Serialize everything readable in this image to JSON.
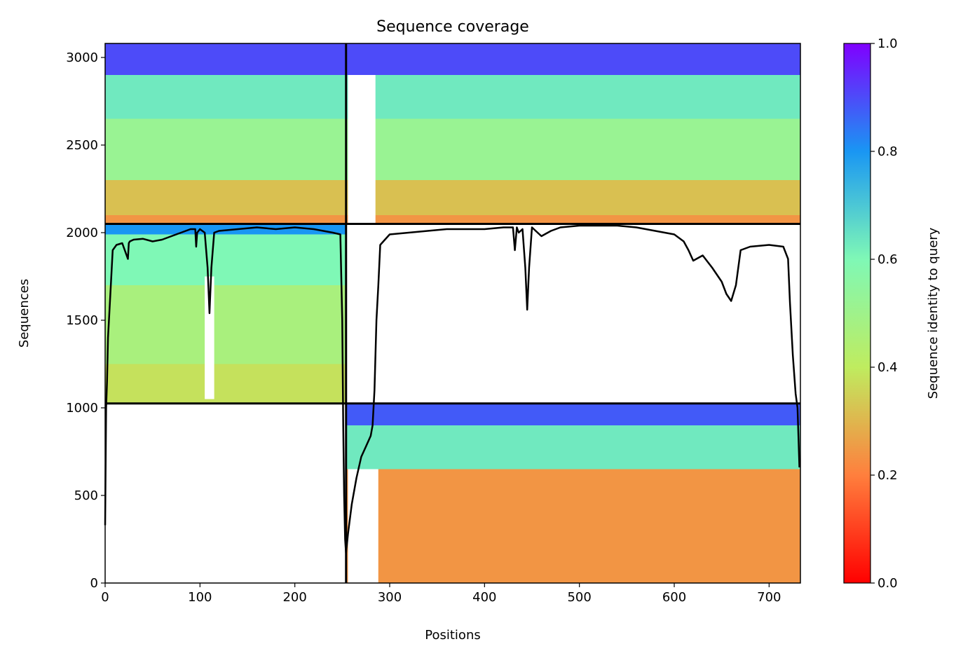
{
  "chart_data": {
    "type": "heatmap",
    "title": "Sequence coverage",
    "xlabel": "Positions",
    "ylabel": "Sequences",
    "xlim": [
      0,
      733
    ],
    "ylim": [
      0,
      3080
    ],
    "x_ticks": [
      0,
      100,
      200,
      300,
      400,
      500,
      600,
      700
    ],
    "y_ticks": [
      0,
      500,
      1000,
      1500,
      2000,
      2500,
      3000
    ],
    "grid": false,
    "colorbar": {
      "label": "Sequence identity to query",
      "range": [
        0.0,
        1.0
      ],
      "ticks": [
        0.0,
        0.2,
        0.4,
        0.6,
        0.8,
        1.0
      ],
      "colormap": "rainbow_r",
      "colors": [
        "#ff0000",
        "#ff7f3d",
        "#bfec5f",
        "#7ff8b6",
        "#1996f3",
        "#8000ff"
      ]
    },
    "chain_boundaries": {
      "x": [
        254
      ],
      "y": [
        1025,
        2050
      ]
    },
    "blocks": [
      {
        "name": "chain A pairs",
        "x": [
          0,
          254
        ],
        "y": [
          1025,
          2050
        ],
        "identity_bands": [
          {
            "y": [
              1025,
              1250
            ],
            "identity": 0.38
          },
          {
            "y": [
              1250,
              1700
            ],
            "identity": 0.47
          },
          {
            "y": [
              1700,
              1990
            ],
            "identity": 0.6
          },
          {
            "y": [
              1990,
              2050
            ],
            "identity": 0.8
          }
        ],
        "gaps": [
          {
            "x": [
              105,
              115
            ],
            "y": [
              1050,
              1750
            ]
          }
        ]
      },
      {
        "name": "chain A+B pairs (left)",
        "x": [
          0,
          254
        ],
        "y": [
          2050,
          3080
        ],
        "identity_bands": [
          {
            "y": [
              2050,
              2100
            ],
            "identity": 0.24
          },
          {
            "y": [
              2100,
              2300
            ],
            "identity": 0.32
          },
          {
            "y": [
              2300,
              2650
            ],
            "identity": 0.52
          },
          {
            "y": [
              2650,
              2900
            ],
            "identity": 0.63
          },
          {
            "y": [
              2900,
              3080
            ],
            "identity": 0.9
          }
        ],
        "gaps": []
      },
      {
        "name": "chain A+B pairs (right)",
        "x": [
          254,
          733
        ],
        "y": [
          2050,
          3080
        ],
        "identity_bands": [
          {
            "y": [
              2050,
              2100
            ],
            "identity": 0.24
          },
          {
            "y": [
              2100,
              2300
            ],
            "identity": 0.32
          },
          {
            "y": [
              2300,
              2650
            ],
            "identity": 0.52
          },
          {
            "y": [
              2650,
              2900
            ],
            "identity": 0.63
          },
          {
            "y": [
              2900,
              3080
            ],
            "identity": 0.9
          }
        ],
        "gaps": [
          {
            "x": [
              256,
              285
            ],
            "y": [
              2050,
              2900
            ]
          }
        ]
      },
      {
        "name": "chain B pairs",
        "x": [
          254,
          733
        ],
        "y": [
          0,
          1025
        ],
        "identity_bands": [
          {
            "y": [
              0,
              650
            ],
            "identity": 0.24
          },
          {
            "y": [
              650,
              900
            ],
            "identity": 0.63
          },
          {
            "y": [
              900,
              1025
            ],
            "identity": 0.88
          }
        ],
        "gaps": [
          {
            "x": [
              256,
              288
            ],
            "y": [
              0,
              650
            ]
          }
        ]
      }
    ],
    "coverage_line": {
      "x": [
        0,
        1,
        2,
        3,
        5,
        8,
        12,
        18,
        24,
        25,
        26,
        30,
        40,
        50,
        60,
        70,
        80,
        90,
        95,
        96,
        97,
        100,
        105,
        108,
        110,
        112,
        115,
        120,
        140,
        160,
        180,
        200,
        220,
        240,
        248,
        250,
        251,
        252,
        253,
        254,
        256,
        260,
        265,
        270,
        275,
        280,
        282,
        284,
        286,
        288,
        290,
        295,
        300,
        320,
        340,
        360,
        380,
        400,
        420,
        430,
        432,
        434,
        436,
        440,
        443,
        445,
        447,
        450,
        460,
        470,
        480,
        500,
        520,
        540,
        560,
        580,
        600,
        610,
        615,
        620,
        630,
        640,
        650,
        655,
        660,
        665,
        670,
        680,
        700,
        715,
        720,
        722,
        725,
        728,
        730,
        732
      ],
      "y": [
        330,
        1000,
        1150,
        1400,
        1600,
        1900,
        1930,
        1940,
        1850,
        1940,
        1950,
        1960,
        1965,
        1950,
        1960,
        1980,
        2000,
        2020,
        2020,
        1920,
        2000,
        2020,
        2000,
        1800,
        1540,
        1800,
        2000,
        2010,
        2020,
        2030,
        2020,
        2030,
        2020,
        2000,
        1990,
        1500,
        900,
        500,
        250,
        170,
        280,
        450,
        600,
        720,
        780,
        840,
        900,
        1100,
        1500,
        1700,
        1930,
        1960,
        1990,
        2000,
        2010,
        2020,
        2020,
        2020,
        2030,
        2030,
        1900,
        2030,
        2000,
        2020,
        1800,
        1560,
        1800,
        2030,
        1980,
        2010,
        2030,
        2040,
        2040,
        2040,
        2030,
        2010,
        1990,
        1950,
        1900,
        1840,
        1870,
        1800,
        1720,
        1650,
        1610,
        1700,
        1900,
        1920,
        1930,
        1920,
        1850,
        1600,
        1300,
        1080,
        1000,
        660
      ]
    }
  }
}
